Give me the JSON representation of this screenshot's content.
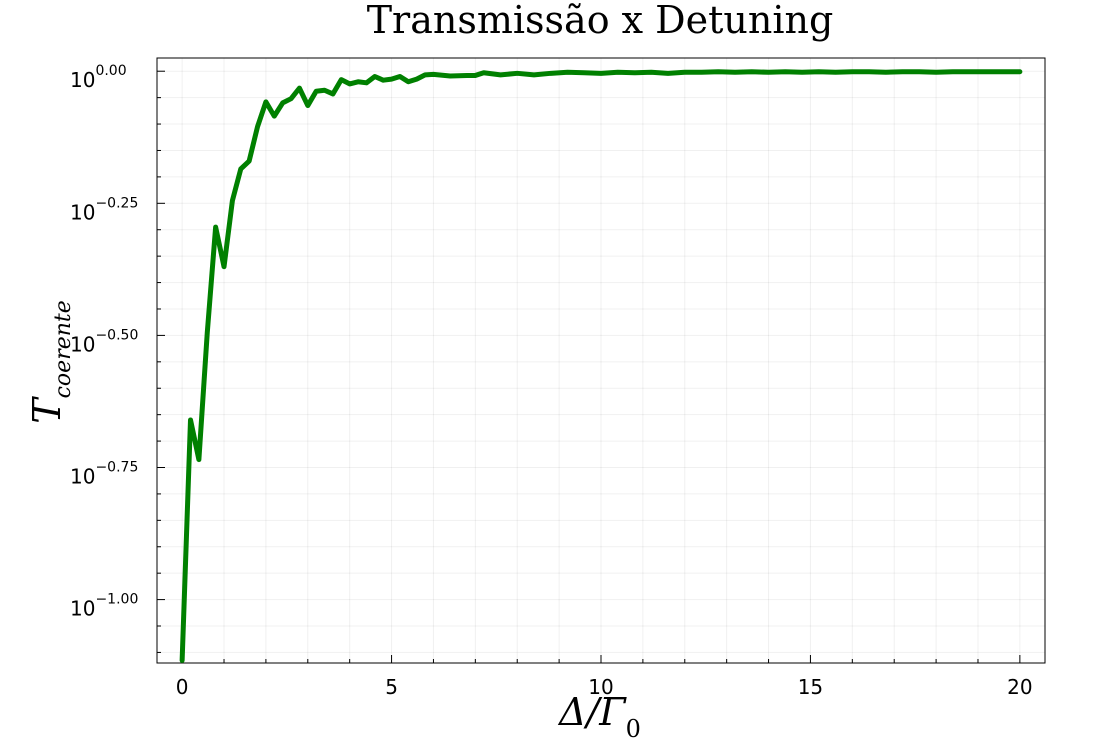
{
  "chart_data": {
    "type": "line",
    "title": "Transmissão x Detuning",
    "xlabel": {
      "base": "Δ/Γ",
      "sub": "0"
    },
    "ylabel": {
      "base": "T",
      "sub": "coerente"
    },
    "xlim": [
      -0.6,
      20.6
    ],
    "ylim_log10": [
      -1.12,
      0.025
    ],
    "y_scale": "log10",
    "grid": true,
    "legend": "none",
    "x_ticks": [
      0,
      5,
      10,
      15,
      20
    ],
    "x_tick_labels": [
      "0",
      "5",
      "10",
      "15",
      "20"
    ],
    "y_ticks_log10": [
      0,
      -0.25,
      -0.5,
      -0.75,
      -1.0
    ],
    "y_tick_labels": [
      {
        "base": "10",
        "exp": "0.00"
      },
      {
        "base": "10",
        "exp": "−0.25"
      },
      {
        "base": "10",
        "exp": "−0.50"
      },
      {
        "base": "10",
        "exp": "−0.75"
      },
      {
        "base": "10",
        "exp": "−1.00"
      }
    ],
    "series": [
      {
        "color": "#008000",
        "x": [
          0,
          0.2,
          0.4,
          0.6,
          0.8,
          1.0,
          1.2,
          1.4,
          1.6,
          1.8,
          2.0,
          2.2,
          2.4,
          2.6,
          2.8,
          3.0,
          3.2,
          3.4,
          3.6,
          3.8,
          4.0,
          4.2,
          4.4,
          4.6,
          4.8,
          5.0,
          5.2,
          5.4,
          5.6,
          5.8,
          6.0,
          6.4,
          6.8,
          7.0,
          7.2,
          7.6,
          8.0,
          8.4,
          8.8,
          9.2,
          9.6,
          10.0,
          10.4,
          10.8,
          11.2,
          11.6,
          12.0,
          12.4,
          12.8,
          13.2,
          13.6,
          14.0,
          14.4,
          14.8,
          15.2,
          15.6,
          16.0,
          16.4,
          16.8,
          17.2,
          17.6,
          18.0,
          18.4,
          18.8,
          19.2,
          19.6,
          20.0
        ],
        "log10_y": [
          -1.115,
          -0.66,
          -0.735,
          -0.495,
          -0.295,
          -0.37,
          -0.245,
          -0.185,
          -0.17,
          -0.105,
          -0.058,
          -0.085,
          -0.06,
          -0.052,
          -0.032,
          -0.065,
          -0.038,
          -0.036,
          -0.043,
          -0.016,
          -0.024,
          -0.02,
          -0.022,
          -0.01,
          -0.017,
          -0.015,
          -0.01,
          -0.02,
          -0.015,
          -0.007,
          -0.006,
          -0.009,
          -0.008,
          -0.008,
          -0.003,
          -0.007,
          -0.004,
          -0.007,
          -0.004,
          -0.002,
          -0.003,
          -0.004,
          -0.002,
          -0.003,
          -0.002,
          -0.004,
          -0.002,
          -0.002,
          -0.001,
          -0.002,
          -0.001,
          -0.002,
          -0.001,
          -0.002,
          -0.001,
          -0.002,
          -0.001,
          -0.001,
          -0.002,
          -0.001,
          -0.001,
          -0.002,
          -0.001,
          -0.001,
          -0.001,
          -0.001,
          -0.001
        ]
      }
    ]
  }
}
